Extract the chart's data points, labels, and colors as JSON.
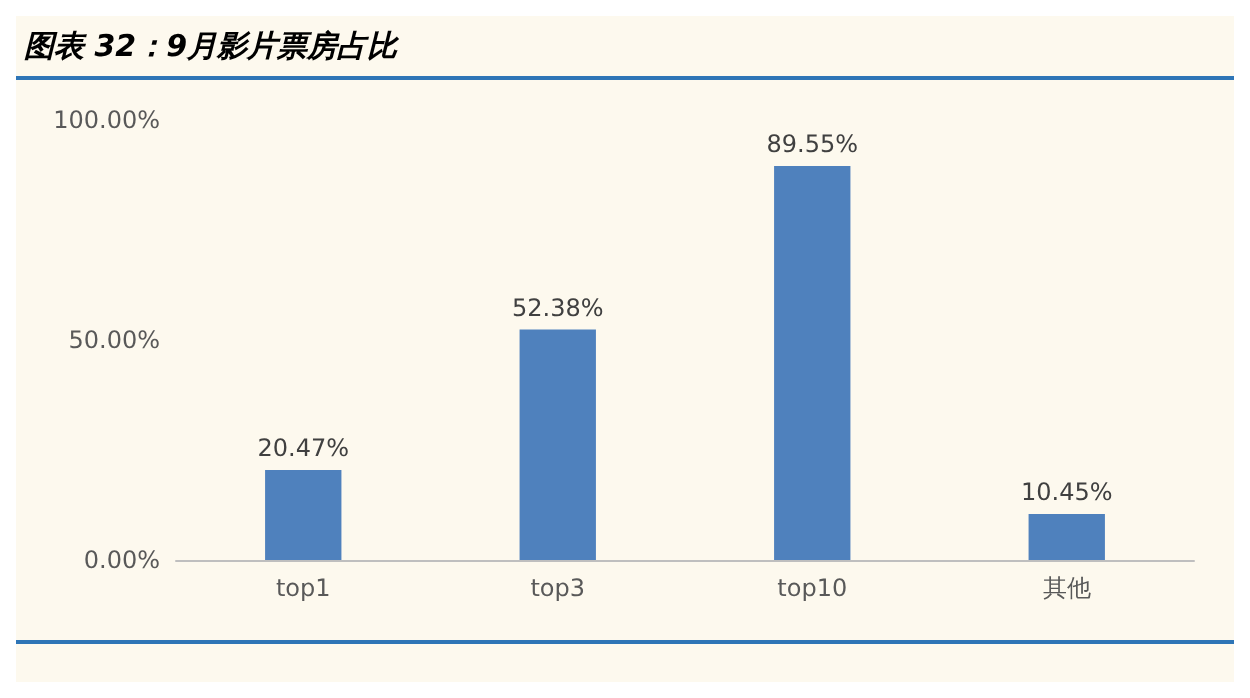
{
  "chart_data": {
    "type": "bar",
    "title": "图表 32：9月影片票房占比",
    "categories": [
      "top1",
      "top3",
      "top10",
      "其他"
    ],
    "values": [
      20.47,
      52.38,
      89.55,
      10.45
    ],
    "value_labels": [
      "20.47%",
      "52.38%",
      "89.55%",
      "10.45%"
    ],
    "color": "#4f81bd",
    "ylim": [
      0,
      100
    ],
    "yticks": [
      {
        "value": 0,
        "label": "0.00%"
      },
      {
        "value": 50,
        "label": "50.00%"
      },
      {
        "value": 100,
        "label": "100.00%"
      }
    ],
    "grid": false
  }
}
